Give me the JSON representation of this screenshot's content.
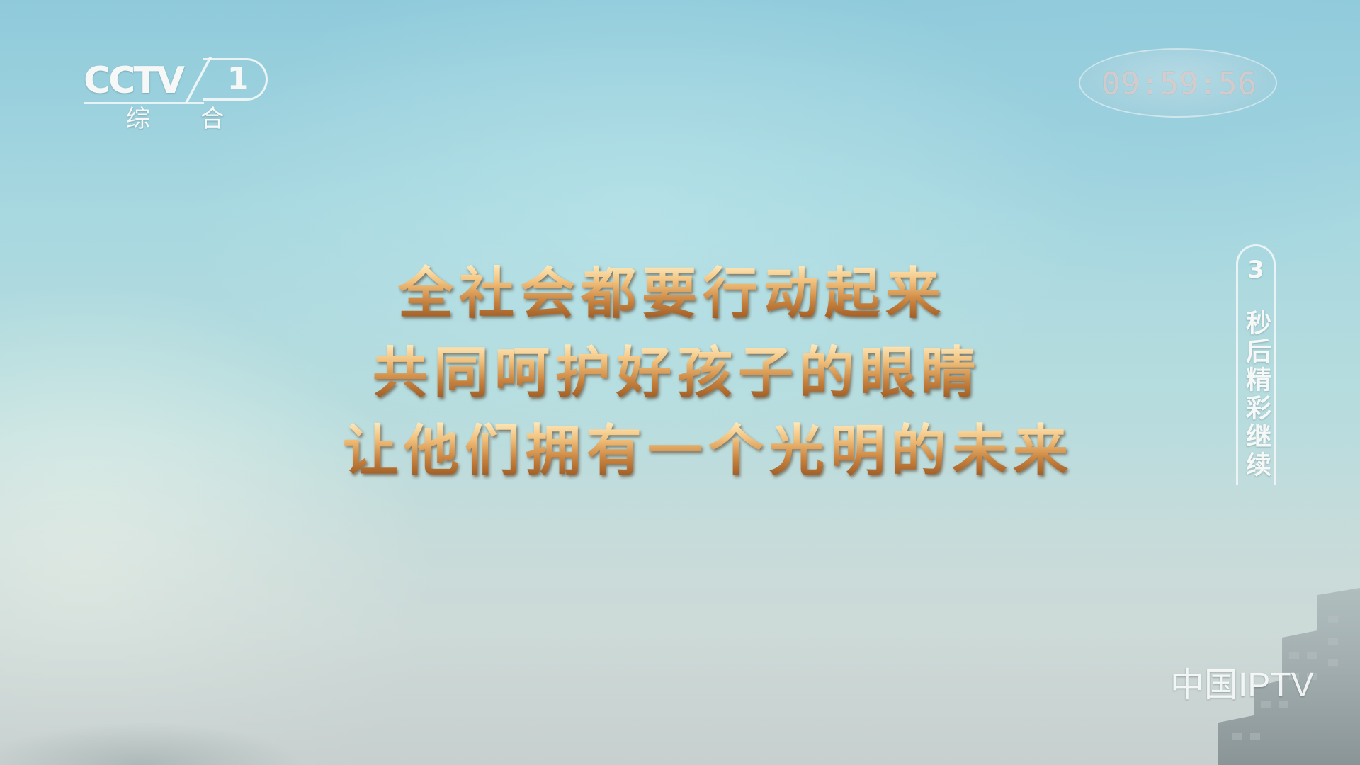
{
  "channel_logo": {
    "brand": "CCTV",
    "number": "1",
    "name": "综 合"
  },
  "clock": {
    "time": "09:59:56"
  },
  "message": {
    "lines": [
      "全社会都要行动起来",
      "共同呵护好孩子的眼睛",
      "让他们拥有一个光明的未来"
    ]
  },
  "side_tag": {
    "countdown": "3",
    "text": "秒后精彩继续"
  },
  "watermark": {
    "text": "中国IPTV"
  }
}
